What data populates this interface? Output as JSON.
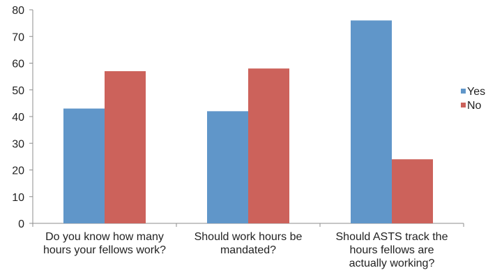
{
  "chart_data": {
    "type": "bar",
    "categories": [
      [
        "Do you know how many",
        "hours your fellows work?"
      ],
      [
        "Should work hours be",
        "mandated?"
      ],
      [
        "Should ASTS track the",
        "hours fellows are",
        "actually working?"
      ]
    ],
    "series": [
      {
        "name": "Yes",
        "values": [
          43,
          42,
          76
        ],
        "color": "#6096c9"
      },
      {
        "name": "No",
        "values": [
          57,
          58,
          24
        ],
        "color": "#cc625b"
      }
    ],
    "ylim": [
      0,
      80
    ],
    "yticks": [
      0,
      10,
      20,
      30,
      40,
      50,
      60,
      70,
      80
    ],
    "grid": false,
    "legend_position": "right"
  }
}
